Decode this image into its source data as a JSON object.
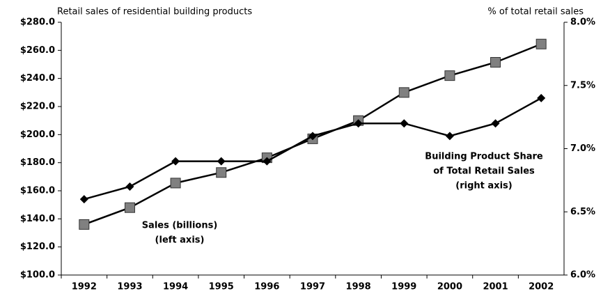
{
  "chart_data": {
    "type": "line",
    "title": "Retail sales of residential building products",
    "y2_title": "% of total retail sales",
    "categories": [
      "1992",
      "1993",
      "1994",
      "1995",
      "1996",
      "1997",
      "1998",
      "1999",
      "2000",
      "2001",
      "2002"
    ],
    "series": [
      {
        "name": "Sales (billions)",
        "color": "#808080",
        "marker": "square",
        "values": [
          136,
          148,
          165.5,
          173,
          183.5,
          197,
          210,
          230,
          242,
          251.5,
          264.5
        ]
      },
      {
        "name": "Building Product Share of Total Retail Sales",
        "color": "#000000",
        "marker": "diamond",
        "axis": "y2",
        "values": [
          6.6,
          6.7,
          6.9,
          6.9,
          6.9,
          7.1,
          7.2,
          7.2,
          7.1,
          7.2,
          7.4
        ]
      }
    ],
    "annotations": [
      {
        "lines": [
          "Sales (billions)",
          "(left axis)"
        ]
      },
      {
        "lines": [
          "Building Product Share",
          "of Total Retail Sales",
          "(right axis)"
        ]
      }
    ],
    "ylim": [
      100,
      280
    ],
    "yticks": [
      {
        "value": 100,
        "label": "$100.0"
      },
      {
        "value": 120,
        "label": "$120.0"
      },
      {
        "value": 140,
        "label": "$140.0"
      },
      {
        "value": 160,
        "label": "$160.0"
      },
      {
        "value": 180,
        "label": "$180.0"
      },
      {
        "value": 200,
        "label": "$200.0"
      },
      {
        "value": 220,
        "label": "$220.0"
      },
      {
        "value": 240,
        "label": "$240.0"
      },
      {
        "value": 260,
        "label": "$260.0"
      },
      {
        "value": 280,
        "label": "$280.0"
      }
    ],
    "y2lim": [
      6.0,
      8.0
    ],
    "y2ticks": [
      {
        "value": 6.0,
        "label": "6.0%"
      },
      {
        "value": 6.5,
        "label": "6.5%"
      },
      {
        "value": 7.0,
        "label": "7.0%"
      },
      {
        "value": 7.5,
        "label": "7.5%"
      },
      {
        "value": 8.0,
        "label": "8.0%"
      }
    ],
    "grid": false
  }
}
